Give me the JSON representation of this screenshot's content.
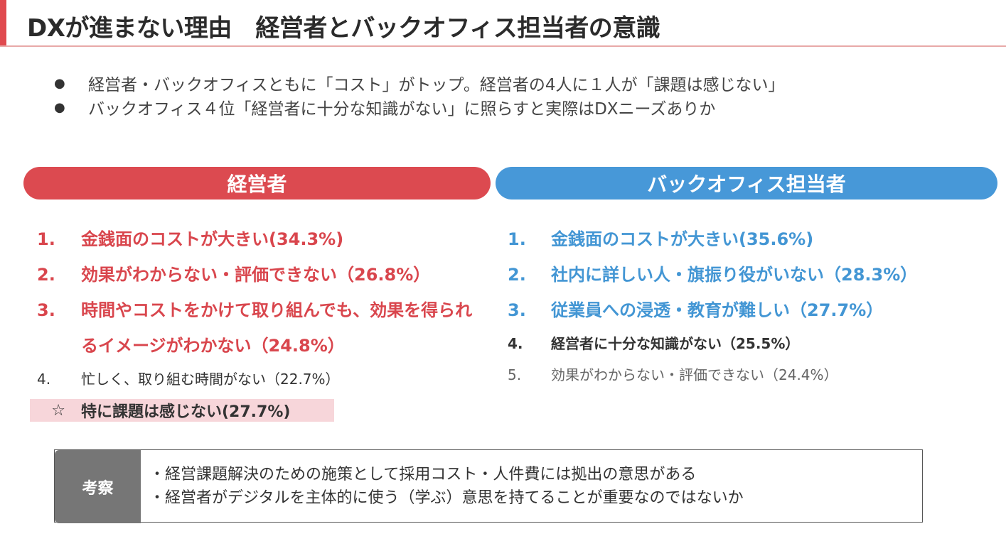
{
  "header": {
    "title": "DXが進まない理由　経営者とバックオフィス担当者の意識"
  },
  "summary": [
    "経営者・バックオフィスともに「コスト」がトップ。経営者の4人に１人が「課題は感じない」",
    "バックオフィス４位「経営者に十分な知識がない」に照らすと実際はDXニーズありか"
  ],
  "bullet_glyph": "●",
  "executives": {
    "header": "経営者",
    "items": [
      {
        "num": "1.",
        "text": "金銭面のコストが大きい(34.3%)"
      },
      {
        "num": "2.",
        "text": "効果がわからない・評価できない（26.8%）"
      },
      {
        "num": "3.",
        "text": "時間やコストをかけて取り組んでも、効果を得られるイメージがわかない（24.8%）"
      },
      {
        "num": "4.",
        "text": "忙しく、取り組む時間がない（22.7%）"
      }
    ],
    "highlight": {
      "mark": "☆",
      "text": "特に課題は感じない(27.7%)"
    },
    "colors": {
      "accent": "#dc4a50",
      "highlight_bg": "#f7d6da"
    }
  },
  "back_office": {
    "header": "バックオフィス担当者",
    "items": [
      {
        "num": "1.",
        "text": "金銭面のコストが大きい(35.6%)"
      },
      {
        "num": "2.",
        "text": "社内に詳しい人・旗振り役がいない（28.3%）"
      },
      {
        "num": "3.",
        "text": "従業員への浸透・教育が難しい（27.7%）"
      },
      {
        "num": "4.",
        "text": "経営者に十分な知識がない（25.5%）"
      },
      {
        "num": "5.",
        "text": "効果がわからない・評価できない（24.4%）"
      }
    ],
    "colors": {
      "accent": "#4798d8"
    }
  },
  "insight": {
    "label": "考察",
    "lines": [
      "・経営課題解決のための施策として採用コスト・人件費には拠出の意思がある",
      "・経営者がデジタルを主体的に使う（学ぶ）意思を持てることが重要なのではないか"
    ]
  }
}
